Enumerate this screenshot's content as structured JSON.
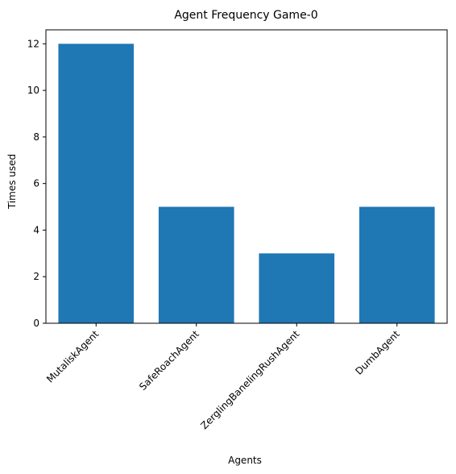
{
  "chart_data": {
    "type": "bar",
    "title": "Agent Frequency Game-0",
    "xlabel": "Agents",
    "ylabel": "Times used",
    "categories": [
      "MutaliskAgent",
      "SafeRoachAgent",
      "ZerglingBanelingRushAgent",
      "DumbAgent"
    ],
    "values": [
      12,
      5,
      3,
      5
    ],
    "ylim": [
      0,
      12.6
    ],
    "yticks": [
      0,
      2,
      4,
      6,
      8,
      10,
      12
    ],
    "grid": false,
    "bar_color": "#1f77b4"
  }
}
